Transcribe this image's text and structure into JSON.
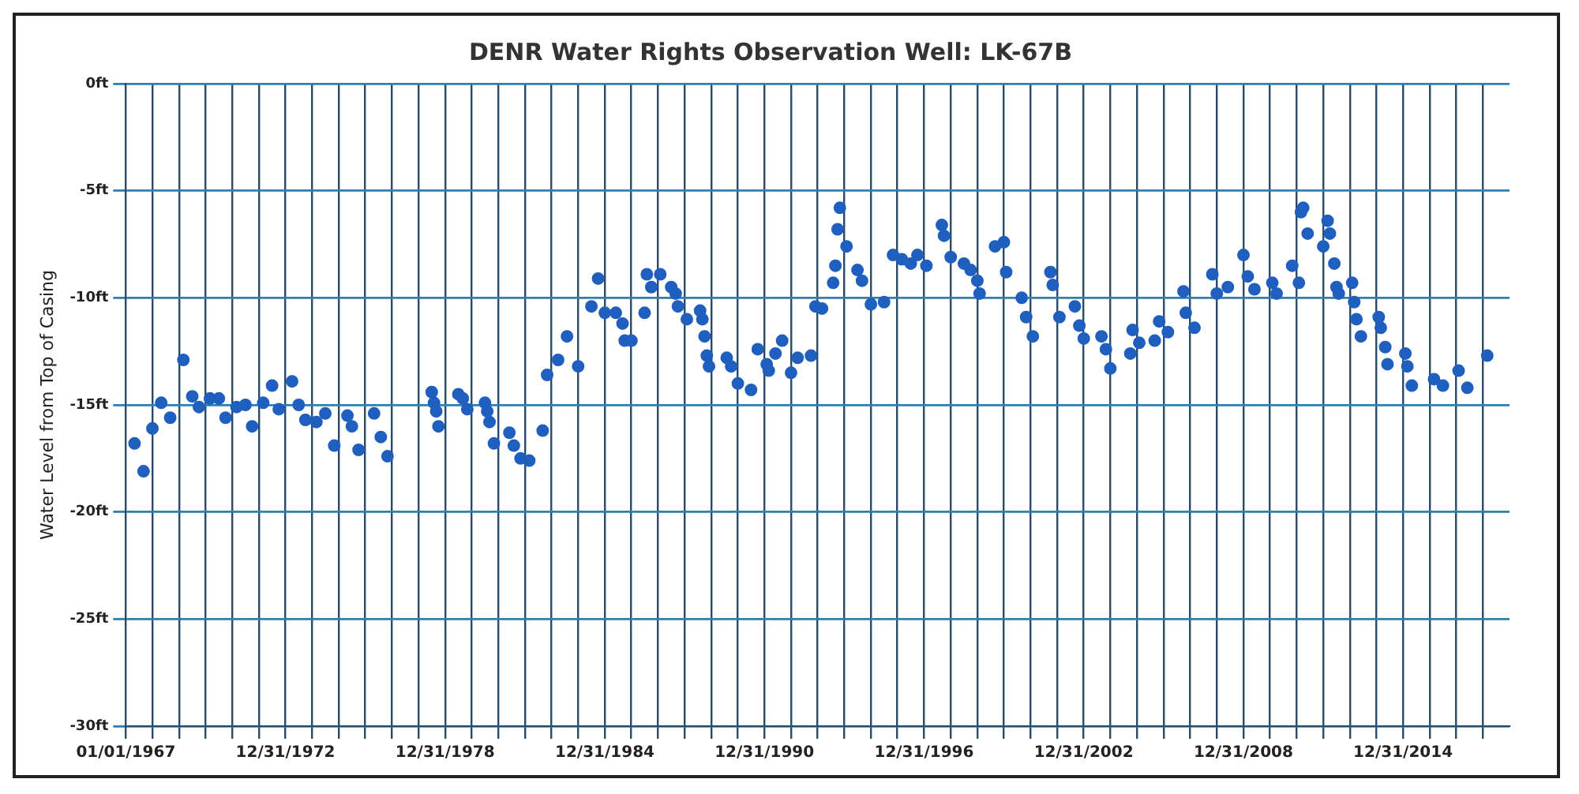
{
  "chart_data": {
    "type": "scatter",
    "title": "DENR Water Rights Observation Well: LK-67B",
    "ylabel": "Water Level from Top of Casing",
    "marker": "circle",
    "grid": true,
    "legend": false,
    "xlim": [
      "1967-01-01",
      "2019-01-01"
    ],
    "xticks": [
      {
        "value": "1967-01-01",
        "label": "01/01/1967"
      },
      {
        "value": "1967-12-31",
        "label": null
      },
      {
        "value": "1968-12-31",
        "label": null
      },
      {
        "value": "1969-12-31",
        "label": null
      },
      {
        "value": "1970-12-31",
        "label": null
      },
      {
        "value": "1971-12-31",
        "label": null
      },
      {
        "value": "1972-12-31",
        "label": "12/31/1972"
      },
      {
        "value": "1973-12-31",
        "label": null
      },
      {
        "value": "1974-12-31",
        "label": null
      },
      {
        "value": "1975-12-31",
        "label": null
      },
      {
        "value": "1976-12-31",
        "label": null
      },
      {
        "value": "1977-12-31",
        "label": null
      },
      {
        "value": "1978-12-31",
        "label": "12/31/1978"
      },
      {
        "value": "1979-12-31",
        "label": null
      },
      {
        "value": "1980-12-31",
        "label": null
      },
      {
        "value": "1981-12-31",
        "label": null
      },
      {
        "value": "1982-12-31",
        "label": null
      },
      {
        "value": "1983-12-31",
        "label": null
      },
      {
        "value": "1984-12-31",
        "label": "12/31/1984"
      },
      {
        "value": "1985-12-31",
        "label": null
      },
      {
        "value": "1986-12-31",
        "label": null
      },
      {
        "value": "1987-12-31",
        "label": null
      },
      {
        "value": "1988-12-31",
        "label": null
      },
      {
        "value": "1989-12-31",
        "label": null
      },
      {
        "value": "1990-12-31",
        "label": "12/31/1990"
      },
      {
        "value": "1991-12-31",
        "label": null
      },
      {
        "value": "1992-12-31",
        "label": null
      },
      {
        "value": "1993-12-31",
        "label": null
      },
      {
        "value": "1994-12-31",
        "label": null
      },
      {
        "value": "1995-12-31",
        "label": null
      },
      {
        "value": "1996-12-31",
        "label": "12/31/1996"
      },
      {
        "value": "1997-12-31",
        "label": null
      },
      {
        "value": "1998-12-31",
        "label": null
      },
      {
        "value": "1999-12-31",
        "label": null
      },
      {
        "value": "2000-12-31",
        "label": null
      },
      {
        "value": "2001-12-31",
        "label": null
      },
      {
        "value": "2002-12-31",
        "label": "12/31/2002"
      },
      {
        "value": "2003-12-31",
        "label": null
      },
      {
        "value": "2004-12-31",
        "label": null
      },
      {
        "value": "2005-12-31",
        "label": null
      },
      {
        "value": "2006-12-31",
        "label": null
      },
      {
        "value": "2007-12-31",
        "label": null
      },
      {
        "value": "2008-12-31",
        "label": "12/31/2008"
      },
      {
        "value": "2009-12-31",
        "label": null
      },
      {
        "value": "2010-12-31",
        "label": null
      },
      {
        "value": "2011-12-31",
        "label": null
      },
      {
        "value": "2012-12-31",
        "label": null
      },
      {
        "value": "2013-12-31",
        "label": null
      },
      {
        "value": "2014-12-31",
        "label": "12/31/2014"
      },
      {
        "value": "2015-12-31",
        "label": null
      },
      {
        "value": "2016-12-31",
        "label": null
      },
      {
        "value": "2017-12-31",
        "label": null
      }
    ],
    "ylim": [
      -30,
      0
    ],
    "yticks": [
      {
        "value": -30,
        "label": "-30ft"
      },
      {
        "value": -25,
        "label": "-25ft"
      },
      {
        "value": -20,
        "label": "-20ft"
      },
      {
        "value": -15,
        "label": "-15ft"
      },
      {
        "value": -10,
        "label": "-10ft"
      },
      {
        "value": -5,
        "label": "-5ft"
      },
      {
        "value": 0,
        "label": "0ft"
      }
    ],
    "series": [
      {
        "color": "#1f5fbf",
        "x": [
          "1967-05",
          "1967-09",
          "1968-01",
          "1968-05",
          "1968-09",
          "1969-03",
          "1969-07",
          "1969-10",
          "1970-03",
          "1970-07",
          "1970-10",
          "1971-03",
          "1971-07",
          "1971-10",
          "1972-03",
          "1972-07",
          "1972-10",
          "1973-04",
          "1973-07",
          "1973-10",
          "1974-03",
          "1974-07",
          "1974-11",
          "1975-05",
          "1975-07",
          "1975-10",
          "1976-05",
          "1976-08",
          "1976-11",
          "1978-07",
          "1978-08",
          "1978-09",
          "1978-10",
          "1979-07",
          "1979-09",
          "1979-11",
          "1980-07",
          "1980-08",
          "1980-09",
          "1980-11",
          "1981-06",
          "1981-08",
          "1981-11",
          "1982-03",
          "1982-09",
          "1982-11",
          "1983-04",
          "1983-08",
          "1984-01",
          "1984-07",
          "1984-10",
          "1985-01",
          "1985-06",
          "1985-09",
          "1985-10",
          "1986-01",
          "1986-07",
          "1986-08",
          "1986-10",
          "1987-02",
          "1987-07",
          "1987-09",
          "1987-10",
          "1988-02",
          "1988-08",
          "1988-09",
          "1988-10",
          "1988-11",
          "1988-12",
          "1989-08",
          "1989-10",
          "1990-01",
          "1990-07",
          "1990-10",
          "1991-02",
          "1991-03",
          "1991-06",
          "1991-09",
          "1992-01",
          "1992-04",
          "1992-10",
          "1992-12",
          "1993-03",
          "1993-08",
          "1993-09",
          "1993-10",
          "1993-11",
          "1994-02",
          "1994-07",
          "1994-09",
          "1995-01",
          "1995-07",
          "1995-11",
          "1996-03",
          "1996-07",
          "1996-10",
          "1997-02",
          "1997-09",
          "1997-10",
          "1998-01",
          "1998-07",
          "1998-10",
          "1999-01",
          "1999-02",
          "1999-09",
          "2000-01",
          "2000-02",
          "2000-09",
          "2000-11",
          "2001-02",
          "2001-10",
          "2001-11",
          "2002-02",
          "2002-09",
          "2002-11",
          "2003-01",
          "2003-09",
          "2003-11",
          "2004-01",
          "2004-10",
          "2004-11",
          "2005-02",
          "2005-09",
          "2005-11",
          "2006-03",
          "2006-10",
          "2006-11",
          "2007-03",
          "2007-11",
          "2008-01",
          "2008-06",
          "2009-01",
          "2009-03",
          "2009-06",
          "2010-02",
          "2010-04",
          "2010-11",
          "2011-02",
          "2011-03",
          "2011-04",
          "2011-06",
          "2012-01",
          "2012-03",
          "2012-04",
          "2012-06",
          "2012-07",
          "2012-08",
          "2013-02",
          "2013-03",
          "2013-04",
          "2013-06",
          "2014-02",
          "2014-03",
          "2014-05",
          "2014-06",
          "2015-02",
          "2015-03",
          "2015-05",
          "2016-03",
          "2016-07",
          "2017-02",
          "2017-06",
          "2018-03"
        ],
        "values": [
          -16.8,
          -18.1,
          -16.1,
          -14.9,
          -15.6,
          -12.9,
          -14.6,
          -15.1,
          -14.7,
          -14.7,
          -15.6,
          -15.1,
          -15.0,
          -16.0,
          -14.9,
          -14.1,
          -15.2,
          -13.9,
          -15.0,
          -15.7,
          -15.8,
          -15.4,
          -16.9,
          -15.5,
          -16.0,
          -17.1,
          -15.4,
          -16.5,
          -17.4,
          -14.4,
          -14.9,
          -15.3,
          -16.0,
          -14.5,
          -14.7,
          -15.2,
          -14.9,
          -15.3,
          -15.8,
          -16.8,
          -16.3,
          -16.9,
          -17.5,
          -17.6,
          -16.2,
          -13.6,
          -12.9,
          -11.8,
          -13.2,
          -10.4,
          -9.1,
          -10.7,
          -10.7,
          -11.2,
          -12.0,
          -12.0,
          -10.7,
          -8.9,
          -9.5,
          -8.9,
          -9.5,
          -9.8,
          -10.4,
          -11.0,
          -10.6,
          -11.0,
          -11.8,
          -12.7,
          -13.2,
          -12.8,
          -13.2,
          -14.0,
          -14.3,
          -12.4,
          -13.1,
          -13.4,
          -12.6,
          -12.0,
          -13.5,
          -12.8,
          -12.7,
          -10.4,
          -10.5,
          -9.3,
          -8.5,
          -6.8,
          -5.8,
          -7.6,
          -8.7,
          -9.2,
          -10.3,
          -10.2,
          -8.0,
          -8.2,
          -8.4,
          -8.0,
          -8.5,
          -6.6,
          -7.1,
          -8.1,
          -8.4,
          -8.7,
          -9.2,
          -9.8,
          -7.6,
          -7.4,
          -8.8,
          -10.0,
          -10.9,
          -11.8,
          -8.8,
          -9.4,
          -10.9,
          -10.4,
          -11.3,
          -11.9,
          -11.8,
          -12.4,
          -13.3,
          -12.6,
          -11.5,
          -12.1,
          -12.0,
          -11.1,
          -11.6,
          -9.7,
          -10.7,
          -11.4,
          -8.9,
          -9.8,
          -9.5,
          -8.0,
          -9.0,
          -9.6,
          -9.3,
          -9.8,
          -8.5,
          -9.3,
          -6.0,
          -5.8,
          -7.0,
          -7.6,
          -6.4,
          -7.0,
          -8.4,
          -9.5,
          -9.8,
          -9.3,
          -10.2,
          -11.0,
          -11.8,
          -10.9,
          -11.4,
          -12.3,
          -13.1,
          -12.6,
          -13.2,
          -14.1,
          -13.8,
          -14.1,
          -13.4,
          -14.2,
          -12.7
        ]
      }
    ]
  }
}
